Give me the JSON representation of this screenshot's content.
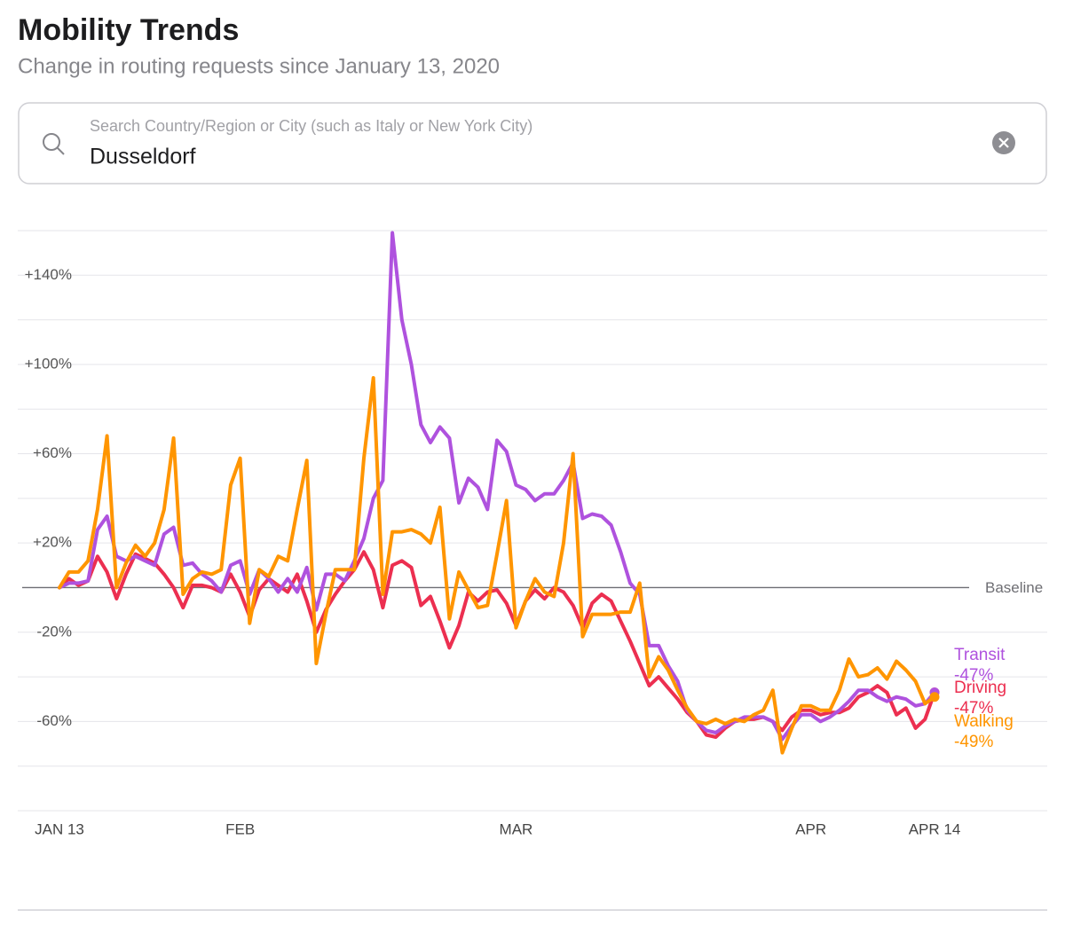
{
  "header": {
    "title": "Mobility Trends",
    "subtitle": "Change in routing requests since January 13, 2020"
  },
  "search": {
    "placeholder": "Search Country/Region or City (such as Italy or New York City)",
    "value": "Dusseldorf"
  },
  "chart_data": {
    "type": "line",
    "baseline_label": "Baseline",
    "xlim": [
      "2020-01-13",
      "2020-04-14"
    ],
    "xticks": [
      {
        "value": "2020-01-13",
        "label": "JAN 13"
      },
      {
        "value": "2020-02-01",
        "label": "FEB"
      },
      {
        "value": "2020-03-01",
        "label": "MAR"
      },
      {
        "value": "2020-04-01",
        "label": "APR"
      },
      {
        "value": "2020-04-14",
        "label": "APR 14"
      }
    ],
    "ylim": [
      -100,
      160
    ],
    "yticks": [
      {
        "value": -60,
        "label": "-60%"
      },
      {
        "value": -20,
        "label": "-20%"
      },
      {
        "value": 20,
        "label": "+20%"
      },
      {
        "value": 60,
        "label": "+60%"
      },
      {
        "value": 100,
        "label": "+100%"
      },
      {
        "value": 140,
        "label": "+140%"
      }
    ],
    "minor_yticks": [
      -100,
      -80,
      -40,
      0,
      40,
      80,
      120,
      160
    ],
    "grid": true,
    "x": [
      "2020-01-13",
      "2020-01-14",
      "2020-01-15",
      "2020-01-16",
      "2020-01-17",
      "2020-01-18",
      "2020-01-19",
      "2020-01-20",
      "2020-01-21",
      "2020-01-22",
      "2020-01-23",
      "2020-01-24",
      "2020-01-25",
      "2020-01-26",
      "2020-01-27",
      "2020-01-28",
      "2020-01-29",
      "2020-01-30",
      "2020-01-31",
      "2020-02-01",
      "2020-02-02",
      "2020-02-03",
      "2020-02-04",
      "2020-02-05",
      "2020-02-06",
      "2020-02-07",
      "2020-02-08",
      "2020-02-09",
      "2020-02-10",
      "2020-02-11",
      "2020-02-12",
      "2020-02-13",
      "2020-02-14",
      "2020-02-15",
      "2020-02-16",
      "2020-02-17",
      "2020-02-18",
      "2020-02-19",
      "2020-02-20",
      "2020-02-21",
      "2020-02-22",
      "2020-02-23",
      "2020-02-24",
      "2020-02-25",
      "2020-02-26",
      "2020-02-27",
      "2020-02-28",
      "2020-02-29",
      "2020-03-01",
      "2020-03-02",
      "2020-03-03",
      "2020-03-04",
      "2020-03-05",
      "2020-03-06",
      "2020-03-07",
      "2020-03-08",
      "2020-03-09",
      "2020-03-10",
      "2020-03-11",
      "2020-03-12",
      "2020-03-13",
      "2020-03-14",
      "2020-03-15",
      "2020-03-16",
      "2020-03-17",
      "2020-03-18",
      "2020-03-19",
      "2020-03-20",
      "2020-03-21",
      "2020-03-22",
      "2020-03-23",
      "2020-03-24",
      "2020-03-25",
      "2020-03-26",
      "2020-03-27",
      "2020-03-28",
      "2020-03-29",
      "2020-03-30",
      "2020-03-31",
      "2020-04-01",
      "2020-04-02",
      "2020-04-03",
      "2020-04-04",
      "2020-04-05",
      "2020-04-06",
      "2020-04-07",
      "2020-04-08",
      "2020-04-09",
      "2020-04-10",
      "2020-04-11",
      "2020-04-12",
      "2020-04-13",
      "2020-04-14"
    ],
    "series": [
      {
        "name": "Driving",
        "color": "#ec2f50",
        "end_label": "-47%",
        "values": [
          0,
          4,
          1,
          3,
          14,
          7,
          -5,
          6,
          15,
          13,
          11,
          6,
          0,
          -9,
          1,
          1,
          0,
          -2,
          6,
          -2,
          -13,
          -1,
          4,
          1,
          -2,
          6,
          -6,
          -20,
          -10,
          -3,
          3,
          8,
          16,
          8,
          -9,
          10,
          12,
          9,
          -8,
          -4,
          -15,
          -27,
          -17,
          -2,
          -6,
          -2,
          -1,
          -7,
          -17,
          -6,
          -1,
          -5,
          0,
          -2,
          -8,
          -18,
          -7,
          -3,
          -6,
          -15,
          -24,
          -34,
          -44,
          -40,
          -45,
          -50,
          -56,
          -60,
          -66,
          -67,
          -63,
          -60,
          -59,
          -59,
          -58,
          -60,
          -64,
          -58,
          -55,
          -55,
          -57,
          -56,
          -56,
          -54,
          -49,
          -47,
          -44,
          -47,
          -57,
          -54,
          -63,
          -59,
          -47
        ]
      },
      {
        "name": "Transit",
        "color": "#af52de",
        "end_label": "-47%",
        "values": [
          0,
          2,
          2,
          3,
          26,
          32,
          14,
          12,
          14,
          12,
          10,
          24,
          27,
          10,
          11,
          6,
          3,
          -2,
          10,
          12,
          -3,
          8,
          4,
          -2,
          4,
          -2,
          9,
          -10,
          6,
          6,
          3,
          12,
          22,
          40,
          48,
          159,
          120,
          100,
          73,
          65,
          72,
          67,
          38,
          49,
          45,
          35,
          66,
          61,
          46,
          44,
          39,
          42,
          42,
          48,
          56,
          31,
          33,
          32,
          28,
          16,
          2,
          -3,
          -26,
          -26,
          -35,
          -42,
          -55,
          -60,
          -64,
          -65,
          -62,
          -60,
          -58,
          -58,
          -58,
          -60,
          -68,
          -62,
          -57,
          -57,
          -60,
          -58,
          -55,
          -51,
          -46,
          -46,
          -49,
          -51,
          -49,
          -50,
          -53,
          -52,
          -47
        ]
      },
      {
        "name": "Walking",
        "color": "#ff9500",
        "end_label": "-49%",
        "values": [
          0,
          7,
          7,
          12,
          35,
          68,
          0,
          11,
          19,
          14,
          20,
          35,
          67,
          -3,
          4,
          7,
          6,
          8,
          46,
          58,
          -16,
          8,
          5,
          14,
          12,
          35,
          57,
          -34,
          -12,
          8,
          8,
          8,
          58,
          94,
          -3,
          25,
          25,
          26,
          24,
          20,
          36,
          -14,
          7,
          -1,
          -9,
          -8,
          15,
          39,
          -18,
          -6,
          4,
          -2,
          -4,
          20,
          60,
          -22,
          -12,
          -12,
          -12,
          -11,
          -11,
          2,
          -40,
          -31,
          -37,
          -46,
          -54,
          -60,
          -61,
          -59,
          -61,
          -59,
          -60,
          -57,
          -55,
          -46,
          -74,
          -63,
          -53,
          -53,
          -55,
          -55,
          -46,
          -32,
          -40,
          -39,
          -36,
          -41,
          -33,
          -37,
          -42,
          -52,
          -49
        ]
      }
    ]
  }
}
